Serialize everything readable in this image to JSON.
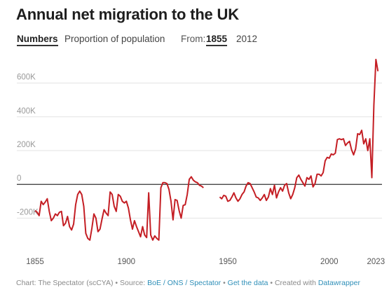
{
  "title": "Annual net migration to the UK",
  "controls": {
    "numbers_label": "Numbers",
    "proportion_label": "Proportion of population",
    "from_label": "From:",
    "from_option_1": "1855",
    "from_option_2": "2012"
  },
  "colors": {
    "line": "#c41e24",
    "grid": "#e3e3e3",
    "zero": "#333333"
  },
  "chart_data": {
    "type": "line",
    "title": "Annual net migration to the UK",
    "xlabel": "",
    "ylabel": "",
    "xlim": [
      1846,
      2026
    ],
    "ylim": [
      -360000,
      760000
    ],
    "y_ticks": [
      {
        "value": 600000,
        "label": "600K"
      },
      {
        "value": 400000,
        "label": "400K"
      },
      {
        "value": 200000,
        "label": "200K"
      },
      {
        "value": 0,
        "label": "0"
      },
      {
        "value": -200000,
        "label": "-200K"
      }
    ],
    "x_ticks": [
      {
        "value": 1855,
        "label": "1855"
      },
      {
        "value": 1900,
        "label": "1900"
      },
      {
        "value": 1950,
        "label": "1950"
      },
      {
        "value": 2000,
        "label": "2000"
      },
      {
        "value": 2023,
        "label": "2023"
      }
    ],
    "grid": true,
    "series": [
      {
        "segments": [
          [
            [
              1855,
              -155000
            ],
            [
              1856,
              -165000
            ],
            [
              1857,
              -185000
            ],
            [
              1858,
              -100000
            ],
            [
              1859,
              -120000
            ],
            [
              1860,
              -105000
            ],
            [
              1861,
              -85000
            ],
            [
              1862,
              -160000
            ],
            [
              1863,
              -215000
            ],
            [
              1864,
              -200000
            ],
            [
              1865,
              -175000
            ],
            [
              1866,
              -185000
            ],
            [
              1867,
              -165000
            ],
            [
              1868,
              -160000
            ],
            [
              1869,
              -245000
            ],
            [
              1870,
              -230000
            ],
            [
              1871,
              -190000
            ],
            [
              1872,
              -250000
            ],
            [
              1873,
              -270000
            ],
            [
              1874,
              -235000
            ],
            [
              1875,
              -120000
            ],
            [
              1876,
              -60000
            ],
            [
              1877,
              -40000
            ],
            [
              1878,
              -60000
            ],
            [
              1879,
              -130000
            ],
            [
              1880,
              -290000
            ],
            [
              1881,
              -320000
            ],
            [
              1882,
              -330000
            ],
            [
              1883,
              -260000
            ],
            [
              1884,
              -175000
            ],
            [
              1885,
              -200000
            ],
            [
              1886,
              -280000
            ],
            [
              1887,
              -265000
            ],
            [
              1888,
              -205000
            ],
            [
              1889,
              -150000
            ],
            [
              1890,
              -170000
            ],
            [
              1891,
              -185000
            ],
            [
              1892,
              -45000
            ],
            [
              1893,
              -60000
            ],
            [
              1894,
              -130000
            ],
            [
              1895,
              -160000
            ],
            [
              1896,
              -60000
            ],
            [
              1897,
              -70000
            ],
            [
              1898,
              -100000
            ],
            [
              1899,
              -110000
            ],
            [
              1900,
              -100000
            ],
            [
              1901,
              -140000
            ],
            [
              1902,
              -210000
            ],
            [
              1903,
              -265000
            ],
            [
              1904,
              -215000
            ],
            [
              1905,
              -250000
            ],
            [
              1906,
              -280000
            ],
            [
              1907,
              -310000
            ],
            [
              1908,
              -250000
            ],
            [
              1909,
              -300000
            ],
            [
              1910,
              -315000
            ],
            [
              1911,
              -50000
            ],
            [
              1912,
              -300000
            ],
            [
              1913,
              -330000
            ],
            [
              1914,
              -305000
            ],
            [
              1915,
              -320000
            ],
            [
              1916,
              -330000
            ],
            [
              1917,
              -20000
            ],
            [
              1918,
              10000
            ],
            [
              1919,
              10000
            ],
            [
              1920,
              5000
            ],
            [
              1921,
              -30000
            ],
            [
              1922,
              -100000
            ],
            [
              1923,
              -210000
            ],
            [
              1924,
              -90000
            ],
            [
              1925,
              -95000
            ],
            [
              1926,
              -155000
            ],
            [
              1927,
              -200000
            ],
            [
              1928,
              -125000
            ],
            [
              1929,
              -120000
            ],
            [
              1930,
              -60000
            ],
            [
              1931,
              30000
            ],
            [
              1932,
              45000
            ],
            [
              1933,
              25000
            ],
            [
              1934,
              15000
            ],
            [
              1935,
              10000
            ],
            [
              1936,
              -5000
            ],
            [
              1937,
              -10000
            ],
            [
              1938,
              -20000
            ]
          ],
          [
            [
              1946,
              -75000
            ],
            [
              1947,
              -85000
            ],
            [
              1948,
              -65000
            ],
            [
              1949,
              -70000
            ],
            [
              1950,
              -100000
            ],
            [
              1951,
              -95000
            ],
            [
              1952,
              -75000
            ],
            [
              1953,
              -50000
            ],
            [
              1954,
              -80000
            ],
            [
              1955,
              -100000
            ],
            [
              1956,
              -85000
            ],
            [
              1957,
              -60000
            ],
            [
              1958,
              -45000
            ],
            [
              1959,
              -10000
            ],
            [
              1960,
              10000
            ],
            [
              1961,
              5000
            ],
            [
              1962,
              -20000
            ],
            [
              1963,
              -45000
            ],
            [
              1964,
              -75000
            ],
            [
              1965,
              -80000
            ],
            [
              1966,
              -95000
            ],
            [
              1967,
              -80000
            ],
            [
              1968,
              -60000
            ],
            [
              1969,
              -95000
            ],
            [
              1970,
              -75000
            ],
            [
              1971,
              -25000
            ],
            [
              1972,
              -60000
            ],
            [
              1973,
              -5000
            ],
            [
              1974,
              -80000
            ],
            [
              1975,
              -45000
            ],
            [
              1976,
              -20000
            ],
            [
              1977,
              -40000
            ],
            [
              1978,
              -5000
            ],
            [
              1979,
              5000
            ],
            [
              1980,
              -50000
            ],
            [
              1981,
              -85000
            ],
            [
              1982,
              -60000
            ],
            [
              1983,
              -20000
            ],
            [
              1984,
              40000
            ],
            [
              1985,
              55000
            ],
            [
              1986,
              30000
            ],
            [
              1987,
              10000
            ],
            [
              1988,
              -10000
            ],
            [
              1989,
              40000
            ],
            [
              1990,
              30000
            ],
            [
              1991,
              50000
            ],
            [
              1992,
              -15000
            ],
            [
              1993,
              5000
            ],
            [
              1994,
              60000
            ],
            [
              1995,
              60000
            ],
            [
              1996,
              50000
            ],
            [
              1997,
              70000
            ],
            [
              1998,
              140000
            ],
            [
              1999,
              160000
            ],
            [
              2000,
              155000
            ],
            [
              2001,
              180000
            ],
            [
              2002,
              175000
            ],
            [
              2003,
              185000
            ],
            [
              2004,
              265000
            ],
            [
              2005,
              270000
            ],
            [
              2006,
              265000
            ],
            [
              2007,
              270000
            ],
            [
              2008,
              230000
            ],
            [
              2009,
              245000
            ],
            [
              2010,
              255000
            ],
            [
              2011,
              205000
            ],
            [
              2012,
              175000
            ],
            [
              2013,
              210000
            ],
            [
              2014,
              300000
            ],
            [
              2015,
              295000
            ],
            [
              2016,
              320000
            ],
            [
              2017,
              240000
            ],
            [
              2018,
              270000
            ],
            [
              2019,
              200000
            ],
            [
              2020,
              270000
            ],
            [
              2021,
              40000
            ],
            [
              2022,
              470000
            ],
            [
              2023,
              740000
            ],
            [
              2024,
              670000
            ]
          ]
        ]
      }
    ]
  },
  "footer": {
    "prefix": "Chart: The Spectator (scCYA) • Source: ",
    "source_link": "BoE / ONS / Spectator",
    "sep1": " • ",
    "data_link": "Get the data",
    "sep2": " • Created with ",
    "dw_link": "Datawrapper"
  }
}
